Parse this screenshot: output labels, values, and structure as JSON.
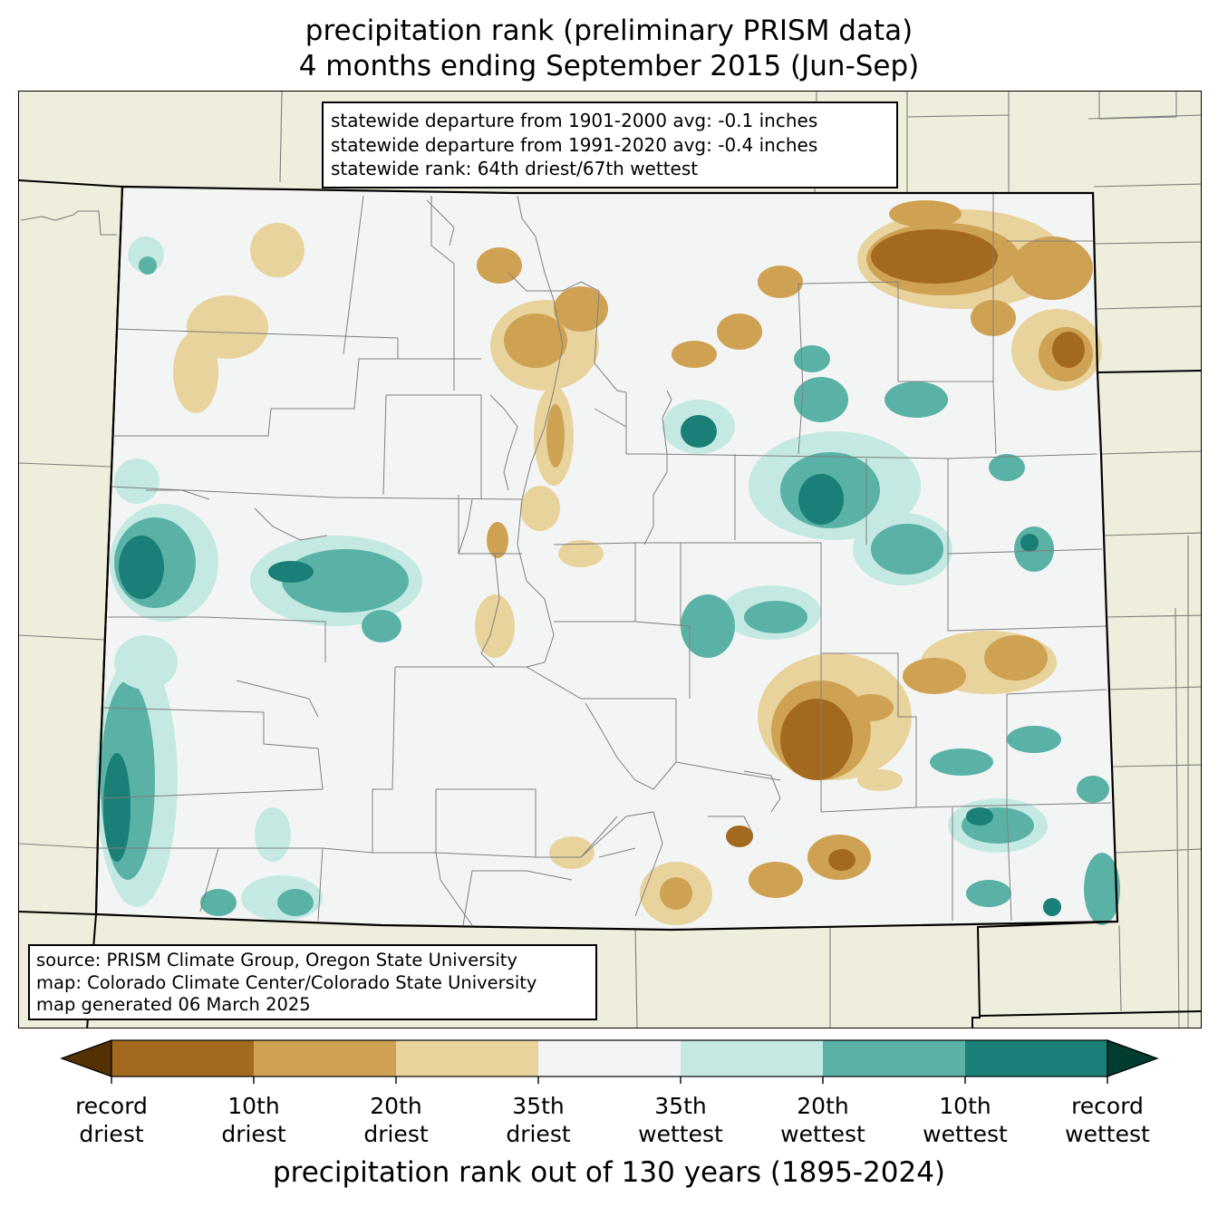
{
  "title": {
    "line1": "precipitation rank (preliminary PRISM data)",
    "line2": "4 months ending September 2015 (Jun-Sep)"
  },
  "stats": {
    "line1": "statewide departure from 1901-2000 avg: -0.1 inches",
    "line2": "statewide departure from 1991-2020 avg: -0.4 inches",
    "line3": "statewide rank: 64th driest/67th wettest"
  },
  "source": {
    "line1": "source: PRISM Climate Group, Oregon State University",
    "line2": "map: Colorado Climate Center/Colorado State University",
    "line3": "map generated 06 March 2025"
  },
  "colorbar": {
    "title": "precipitation rank out of 130 years (1895-2024)",
    "ticks": [
      {
        "line1": "record",
        "line2": "driest"
      },
      {
        "line1": "10th",
        "line2": "driest"
      },
      {
        "line1": "20th",
        "line2": "driest"
      },
      {
        "line1": "35th",
        "line2": "driest"
      },
      {
        "line1": "35th",
        "line2": "wettest"
      },
      {
        "line1": "20th",
        "line2": "wettest"
      },
      {
        "line1": "10th",
        "line2": "wettest"
      },
      {
        "line1": "record",
        "line2": "wettest"
      }
    ],
    "colors": {
      "below_record_driest": "#543005",
      "record_to_10th_driest": "#a36a1f",
      "10th_to_20th_driest": "#cfa253",
      "20th_to_35th_driest": "#e8d39c",
      "near_normal": "#f3f5f4",
      "35th_to_20th_wettest": "#c4e9e2",
      "20th_to_10th_wettest": "#5ab2a6",
      "10th_to_record_wettest": "#197f77",
      "above_record_wettest": "#003c30"
    }
  },
  "map_colors": {
    "land_outside": "#efeddb",
    "state_fill": "#f3f5f4",
    "state_border": "#000000",
    "county_lines": "#7f7f7f"
  }
}
